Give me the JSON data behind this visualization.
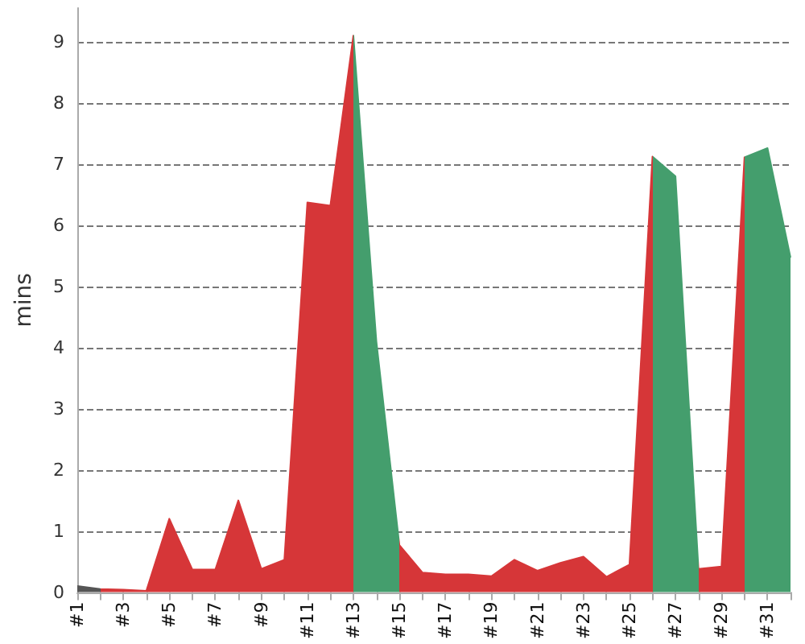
{
  "chart_data": {
    "type": "area",
    "ylabel": "mins",
    "categories": [
      "#1",
      null,
      "#3",
      null,
      "#5",
      null,
      "#7",
      null,
      "#9",
      null,
      "#11",
      null,
      "#13",
      null,
      "#15",
      null,
      "#17",
      null,
      "#19",
      null,
      "#21",
      null,
      "#23",
      null,
      "#25",
      null,
      "#27",
      null,
      "#29",
      null,
      "#31",
      null
    ],
    "values": [
      0.1,
      0.05,
      0.04,
      0.02,
      1.2,
      0.37,
      0.37,
      1.5,
      0.38,
      0.53,
      6.37,
      6.32,
      9.1,
      4.1,
      0.77,
      0.32,
      0.29,
      0.29,
      0.26,
      0.53,
      0.35,
      0.48,
      0.58,
      0.25,
      0.45,
      7.12,
      6.8,
      0.38,
      0.42,
      7.11,
      7.26,
      5.47
    ],
    "colors": [
      "#555555",
      "#d63638",
      "#d63638",
      "#d63638",
      "#d63638",
      "#d63638",
      "#d63638",
      "#d63638",
      "#d63638",
      "#d63638",
      "#d63638",
      "#d63638",
      "#449e6d",
      "#449e6d",
      "#d63638",
      "#d63638",
      "#d63638",
      "#d63638",
      "#d63638",
      "#d63638",
      "#d63638",
      "#d63638",
      "#d63638",
      "#d63638",
      "#d63638",
      "#449e6d",
      "#449e6d",
      "#d63638",
      "#d63638",
      "#449e6d",
      "#449e6d",
      "#449e6d"
    ],
    "ylim": [
      0,
      9.55
    ],
    "yticks": [
      0,
      1,
      2,
      3,
      4,
      5,
      6,
      7,
      8,
      9
    ],
    "grid": "y",
    "marker": "none"
  }
}
